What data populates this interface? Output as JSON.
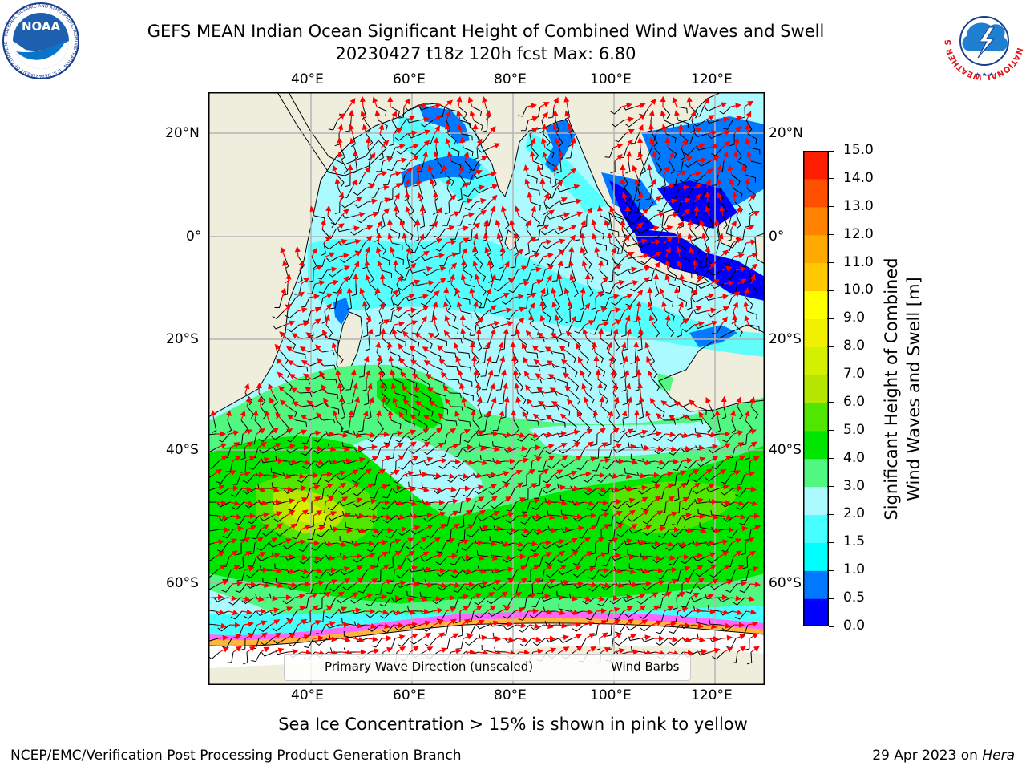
{
  "header": {
    "title_line1": "GEFS MEAN Indian Ocean Significant Height of Combined Wind Waves and Swell",
    "title_line2": "20230427 t18z 120h fcst   Max: 6.80"
  },
  "logos": {
    "noaa": {
      "center_text": "NOAA",
      "ring_text": "NATIONAL OCEANIC AND ATMOSPHERIC ADMINISTRATION · U.S. DEPARTMENT OF COMMERCE"
    },
    "nws": {
      "ring_text": "NATIONAL WEATHER SERVICE"
    }
  },
  "map": {
    "lon_labels_top": [
      "40°E",
      "60°E",
      "80°E",
      "100°E",
      "120°E"
    ],
    "lon_labels_bottom": [
      "40°E",
      "60°E",
      "80°E",
      "100°E",
      "120°E"
    ],
    "lat_labels_left": [
      "20°N",
      "0°",
      "20°S",
      "40°S",
      "60°S"
    ],
    "lat_labels_right": [
      "20°N",
      "0°",
      "20°S",
      "40°S",
      "60°S"
    ],
    "colors": {
      "land": "#efeedd",
      "ocean_base": "#aafaff",
      "grid": "#b4b4b4",
      "wave_arrow": "#ff0000",
      "wind_barb": "#000000"
    }
  },
  "legend": {
    "wave_label": "Primary Wave Direction (unscaled)",
    "wind_label": "Wind Barbs"
  },
  "colorbar": {
    "ticks": [
      "0.0",
      "0.5",
      "1.0",
      "1.5",
      "2.0",
      "3.0",
      "4.0",
      "5.0",
      "6.0",
      "7.0",
      "8.0",
      "9.0",
      "10.0",
      "11.0",
      "12.0",
      "13.0",
      "14.0",
      "15.0"
    ],
    "colors": [
      "#0000ff",
      "#0078ff",
      "#00ffff",
      "#48ffff",
      "#aafaff",
      "#50f882",
      "#00e600",
      "#50e600",
      "#b4e600",
      "#d2f000",
      "#f0f000",
      "#ffff00",
      "#ffc800",
      "#ffaa00",
      "#ff8200",
      "#ff5000",
      "#ff1e00"
    ],
    "label": "Significant Height of Combined Wind Waves and Swell [m]"
  },
  "notes": {
    "sea_ice": "Sea Ice Concentration > 15% is shown in pink to yellow"
  },
  "footer": {
    "left": "NCEP/EMC/Verification Post Processing Product Generation Branch",
    "right_prefix": "29 Apr 2023 on ",
    "right_host": "Hera"
  }
}
